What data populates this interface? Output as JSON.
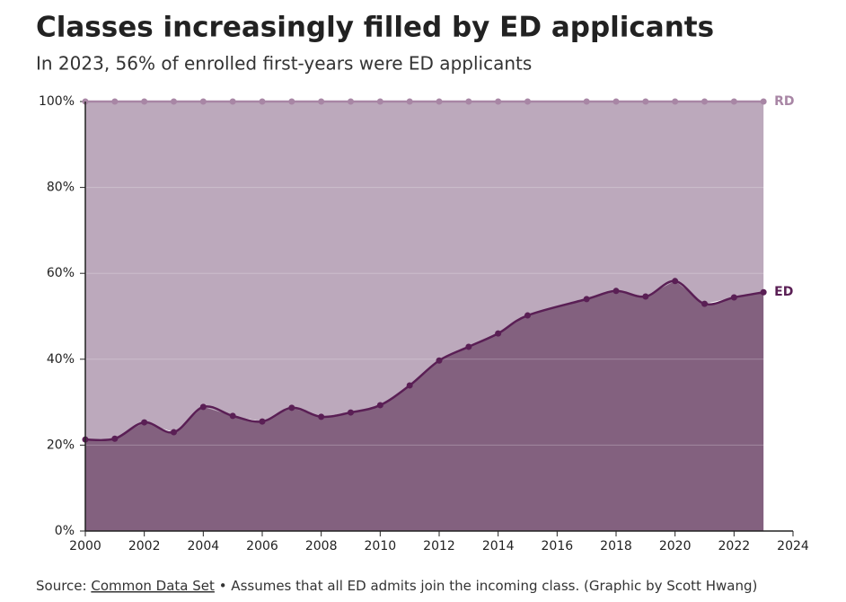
{
  "chart_data": {
    "type": "stacked_area",
    "title": "Classes increasingly filled by ED applicants",
    "subtitle": "In 2023, 56% of enrolled first-years were ED applicants",
    "source_prefix": "Source:",
    "source_link": "Common Data Set",
    "note": "• Assumes that all ED admits join the incoming class. (Graphic by Scott Hwang)",
    "x": [
      2000,
      2001,
      2002,
      2003,
      2004,
      2005,
      2006,
      2007,
      2008,
      2009,
      2010,
      2011,
      2012,
      2013,
      2014,
      2015,
      2017,
      2018,
      2019,
      2020,
      2021,
      2022,
      2023
    ],
    "series": [
      {
        "name": "ED",
        "color": "#5a1f55",
        "fill": "#83617f",
        "values": [
          21.3,
          21.5,
          25.3,
          23.0,
          28.9,
          26.8,
          25.5,
          28.7,
          26.6,
          27.6,
          29.3,
          33.9,
          39.7,
          42.9,
          46.0,
          50.2,
          54.0,
          55.9,
          54.6,
          58.2,
          52.9,
          54.4,
          55.6
        ]
      },
      {
        "name": "RD",
        "color": "#a886a5",
        "fill": "#bca9bc",
        "values": [
          78.7,
          78.5,
          74.7,
          77.0,
          71.1,
          73.2,
          74.5,
          71.3,
          73.4,
          72.4,
          70.7,
          66.1,
          60.3,
          57.1,
          54.0,
          49.8,
          46.0,
          44.1,
          45.4,
          41.8,
          47.1,
          45.6,
          44.4
        ]
      }
    ],
    "xlim": [
      2000,
      2024
    ],
    "xticks": [
      2000,
      2002,
      2004,
      2006,
      2008,
      2010,
      2012,
      2014,
      2016,
      2018,
      2020,
      2022,
      2024
    ],
    "ylim": [
      0,
      100
    ],
    "yticks": [
      {
        "value": 0,
        "label": "0%"
      },
      {
        "value": 20,
        "label": "20%"
      },
      {
        "value": 40,
        "label": "40%"
      },
      {
        "value": 60,
        "label": "60%"
      },
      {
        "value": 80,
        "label": "80%"
      },
      {
        "value": 100,
        "label": "100%"
      }
    ],
    "grid": true
  }
}
